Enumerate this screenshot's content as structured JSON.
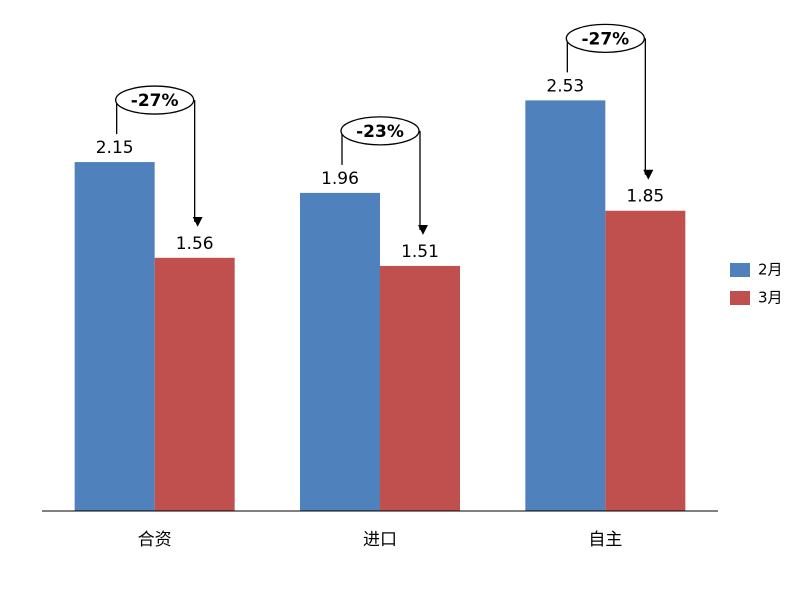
{
  "chart_data": {
    "type": "bar",
    "categories": [
      "合资",
      "进口",
      "自主"
    ],
    "series": [
      {
        "name": "2月",
        "color": "#4f81bd",
        "values": [
          2.15,
          1.96,
          2.53
        ]
      },
      {
        "name": "3月",
        "color": "#c0504d",
        "values": [
          1.56,
          1.51,
          1.85
        ]
      }
    ],
    "annotations": [
      "-27%",
      "-23%",
      "-27%"
    ],
    "legend": "right"
  }
}
